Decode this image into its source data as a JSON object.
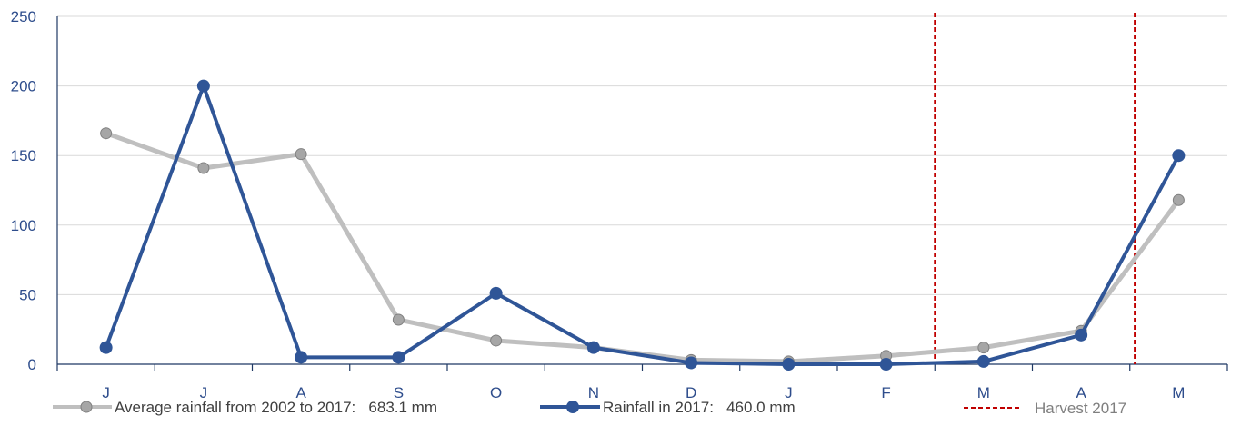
{
  "chart_data": {
    "type": "line",
    "categories": [
      "J",
      "J",
      "A",
      "S",
      "O",
      "N",
      "D",
      "J",
      "F",
      "M",
      "A",
      "M"
    ],
    "ylim": [
      0,
      250
    ],
    "yticks": [
      0,
      50,
      100,
      150,
      200,
      250
    ],
    "grid": true,
    "series": [
      {
        "name": "Average rainfall from 2002 to 2017:   683.1 mm",
        "color": "#bfbfbf",
        "marker_color": "#a6a6a6",
        "values": [
          166,
          141,
          151,
          32,
          17,
          12,
          3,
          2,
          6,
          12,
          24,
          118
        ]
      },
      {
        "name": "Rainfall in 2017:   460.0 mm",
        "color": "#2f5597",
        "marker_color": "#2f5597",
        "values": [
          12,
          200,
          5,
          5,
          51,
          12,
          1,
          0,
          0,
          2,
          21,
          150
        ]
      }
    ],
    "annotations": {
      "harvest_label": "Harvest 2017",
      "harvest_color": "#c00000",
      "harvest_x": [
        8.5,
        10.55
      ]
    },
    "legend_position": "bottom"
  }
}
